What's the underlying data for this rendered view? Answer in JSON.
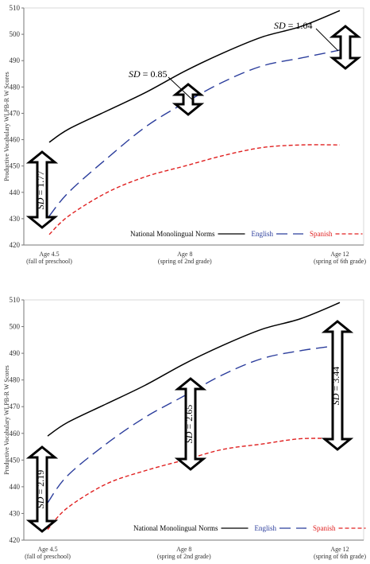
{
  "chart_data": [
    {
      "type": "line",
      "ylabel": "Productive Vocabulary WLPB-R W Scores",
      "ylim": [
        420,
        510
      ],
      "yticks": [
        420,
        430,
        440,
        450,
        460,
        470,
        480,
        490,
        500,
        510
      ],
      "grid": false,
      "x_ticks": [
        {
          "x": 4.5,
          "label": "Age 4.5",
          "sub": "(fall of preschool)"
        },
        {
          "x": 8,
          "label": "Age 8",
          "sub": "(spring of 2nd grade)"
        },
        {
          "x": 12,
          "label": "Age 12",
          "sub": "(spring of 6th grade)"
        }
      ],
      "xlim": [
        4.5,
        12
      ],
      "series": [
        {
          "name": "National Monolingual Norms",
          "color": "#000000",
          "dash": "solid",
          "x": [
            4.5,
            5,
            6,
            7,
            8,
            9,
            10,
            11,
            12
          ],
          "y": [
            459,
            464,
            471,
            478,
            486,
            493,
            499,
            503,
            509
          ]
        },
        {
          "name": "English",
          "color": "#2b3d9c",
          "dash": "long",
          "x": [
            4.5,
            5,
            6,
            7,
            8,
            9,
            10,
            11,
            12
          ],
          "y": [
            431,
            440,
            453,
            465,
            474,
            482,
            488,
            491,
            494
          ]
        },
        {
          "name": "Spanish",
          "color": "#e02020",
          "dash": "short",
          "x": [
            4.5,
            5,
            6,
            7,
            8,
            9,
            10,
            11,
            12
          ],
          "y": [
            424,
            431,
            440,
            446,
            450,
            454,
            457,
            458,
            458
          ]
        }
      ],
      "annotations": [
        {
          "label_var": "SD",
          "value": "1.77",
          "rotated": true
        },
        {
          "label_var": "SD",
          "value": "0.85",
          "rotated": false
        },
        {
          "label_var": "SD",
          "value": "1.04",
          "rotated": false
        }
      ],
      "legend": "bottom-right"
    },
    {
      "type": "line",
      "ylabel": "Productive Vocabulary WLPB-R W Scores",
      "ylim": [
        420,
        510
      ],
      "yticks": [
        420,
        430,
        440,
        450,
        460,
        470,
        480,
        490,
        500,
        510
      ],
      "grid": false,
      "x_ticks": [
        {
          "x": 4.5,
          "label": "Age 4.5",
          "sub": "(fall of preschool)"
        },
        {
          "x": 8,
          "label": "Age 8",
          "sub": "(spring of 2nd grade)"
        },
        {
          "x": 12,
          "label": "Age 12",
          "sub": "(spring of 6th grade)"
        }
      ],
      "xlim": [
        4.5,
        12
      ],
      "series": [
        {
          "name": "National Monolingual Norms",
          "color": "#000000",
          "dash": "solid",
          "x": [
            4.5,
            5,
            6,
            7,
            8,
            9,
            10,
            11,
            12
          ],
          "y": [
            459,
            464,
            471,
            478,
            486,
            493,
            499,
            503,
            509
          ]
        },
        {
          "name": "English",
          "color": "#2b3d9c",
          "dash": "long",
          "x": [
            4.5,
            5,
            6,
            7,
            8,
            9,
            10,
            11,
            12
          ],
          "y": [
            434,
            444,
            456,
            466,
            474,
            482,
            488,
            491,
            493
          ]
        },
        {
          "name": "Spanish",
          "color": "#e02020",
          "dash": "short",
          "x": [
            4.5,
            5,
            6,
            7,
            8,
            9,
            10,
            11,
            12
          ],
          "y": [
            424,
            432,
            441,
            446,
            450,
            454,
            456,
            458,
            458
          ]
        }
      ],
      "annotations": [
        {
          "label_var": "SD",
          "value": "2.19",
          "rotated": true
        },
        {
          "label_var": "SD",
          "value": "2.65",
          "rotated": true
        },
        {
          "label_var": "SD",
          "value": "3.44",
          "rotated": true
        }
      ],
      "legend": "bottom-right"
    }
  ]
}
